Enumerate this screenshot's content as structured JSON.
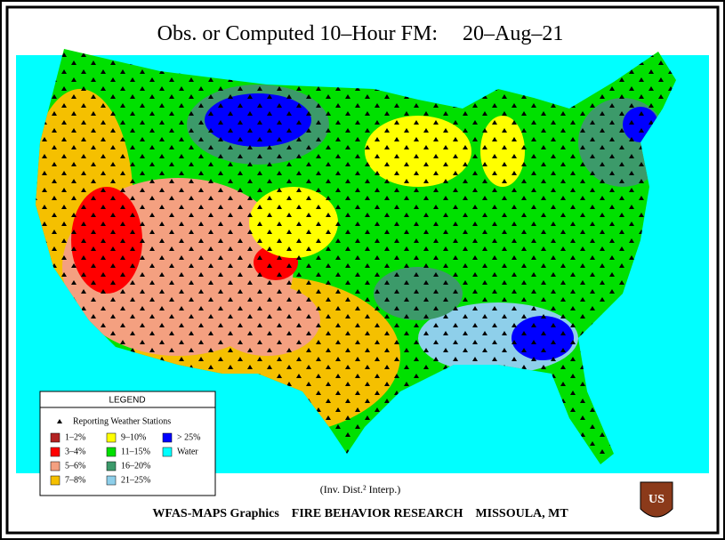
{
  "header": {
    "title": "Obs. or Computed 10–Hour FM:",
    "date": "20–Aug–21"
  },
  "legend": {
    "title": "LEGEND",
    "stations": "Reporting Weather Stations",
    "items": [
      {
        "label": "1–2%",
        "color": "#b22222"
      },
      {
        "label": "3–4%",
        "color": "#ff0000"
      },
      {
        "label": "5–6%",
        "color": "#f4a080"
      },
      {
        "label": "7–8%",
        "color": "#f5c000"
      },
      {
        "label": "9–10%",
        "color": "#ffff00"
      },
      {
        "label": "11–15%",
        "color": "#00e000"
      },
      {
        "label": "16–20%",
        "color": "#3c9a6a"
      },
      {
        "label": "21–25%",
        "color": "#8ecfea"
      },
      {
        "label": "> 25%",
        "color": "#0000ff"
      },
      {
        "label": "Water",
        "color": "#00ffff"
      }
    ]
  },
  "footer": {
    "method": "(Inv. Dist.² Interp.)",
    "credit": "WFAS-MAPS Graphics",
    "group": "FIRE BEHAVIOR RESEARCH",
    "place": "MISSOULA, MT"
  },
  "logo": {
    "text": "US"
  }
}
